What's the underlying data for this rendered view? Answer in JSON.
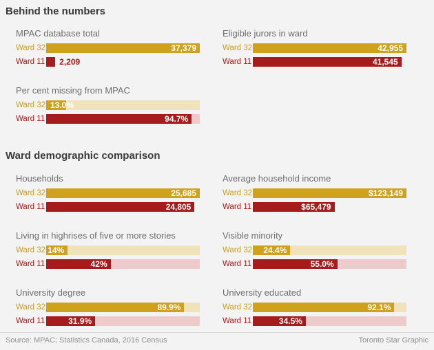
{
  "page": {
    "background": "#F3F3F3",
    "footer": {
      "source": "Source: MPAC; Statistics Canada, 2016 Census",
      "credit": "Toronto Star Graphic"
    }
  },
  "colors": {
    "ward32_bar": "#CFA11D",
    "ward11_bar": "#A61B1B",
    "ward32_track": "#F0E2BB",
    "ward11_track": "#EFCACA",
    "heading_text": "#3A3A3A",
    "chart_title_text": "#6E6E6E",
    "value_text": "#FFFFFF",
    "footer_text": "#8F8F8F",
    "background": "#F3F3F3"
  },
  "chart_data": {
    "type": "bar",
    "orientation": "horizontal",
    "categories": [
      "Ward 32",
      "Ward 11"
    ],
    "legend": "none",
    "grid": "off",
    "sections": [
      {
        "heading": "Behind the numbers",
        "charts": [
          {
            "title": "MPAC database total",
            "col": 1,
            "row": 1,
            "percent_scale": false,
            "rows": [
              {
                "label": "Ward 32",
                "series": "ward32",
                "value": 37379,
                "display": "37,379",
                "value_pos": "inside"
              },
              {
                "label": "Ward 11",
                "series": "ward11",
                "value": 2209,
                "display": "2,209",
                "value_pos": "outside"
              }
            ]
          },
          {
            "title": "Eligible jurors in ward",
            "col": 2,
            "row": 1,
            "percent_scale": false,
            "rows": [
              {
                "label": "Ward 32",
                "series": "ward32",
                "value": 42955,
                "display": "42,955",
                "value_pos": "inside"
              },
              {
                "label": "Ward 11",
                "series": "ward11",
                "value": 41545,
                "display": "41,545",
                "value_pos": "inside"
              }
            ]
          },
          {
            "title": "Per cent missing from MPAC",
            "col": 1,
            "row": 2,
            "percent_scale": true,
            "rows": [
              {
                "label": "Ward 32",
                "series": "ward32",
                "value": 13.0,
                "display": "13.0%",
                "value_pos": "overflow"
              },
              {
                "label": "Ward 11",
                "series": "ward11",
                "value": 94.7,
                "display": "94.7%",
                "value_pos": "inside"
              }
            ]
          }
        ]
      },
      {
        "heading": "Ward demographic comparison",
        "charts": [
          {
            "title": "Households",
            "col": 1,
            "row": 1,
            "percent_scale": false,
            "rows": [
              {
                "label": "Ward 32",
                "series": "ward32",
                "value": 25685,
                "display": "25,685",
                "value_pos": "inside"
              },
              {
                "label": "Ward 11",
                "series": "ward11",
                "value": 24805,
                "display": "24,805",
                "value_pos": "inside"
              }
            ]
          },
          {
            "title": "Average household income",
            "col": 2,
            "row": 1,
            "percent_scale": false,
            "rows": [
              {
                "label": "Ward 32",
                "series": "ward32",
                "value": 123149,
                "display": "$123,149",
                "value_pos": "inside"
              },
              {
                "label": "Ward 11",
                "series": "ward11",
                "value": 65479,
                "display": "$65,479",
                "value_pos": "inside"
              }
            ]
          },
          {
            "title": "Living in highrises of five or more stories",
            "col": 1,
            "row": 2,
            "percent_scale": true,
            "rows": [
              {
                "label": "Ward 32",
                "series": "ward32",
                "value": 14,
                "display": "14%",
                "value_pos": "inside"
              },
              {
                "label": "Ward 11",
                "series": "ward11",
                "value": 42,
                "display": "42%",
                "value_pos": "inside"
              }
            ]
          },
          {
            "title": "Visible minority",
            "col": 2,
            "row": 2,
            "percent_scale": true,
            "rows": [
              {
                "label": "Ward 32",
                "series": "ward32",
                "value": 24.4,
                "display": "24.4%",
                "value_pos": "inside"
              },
              {
                "label": "Ward 11",
                "series": "ward11",
                "value": 55.0,
                "display": "55.0%",
                "value_pos": "inside"
              }
            ]
          },
          {
            "title": "University degree",
            "col": 1,
            "row": 3,
            "percent_scale": true,
            "rows": [
              {
                "label": "Ward 32",
                "series": "ward32",
                "value": 89.9,
                "display": "89.9%",
                "value_pos": "inside"
              },
              {
                "label": "Ward 11",
                "series": "ward11",
                "value": 31.9,
                "display": "31.9%",
                "value_pos": "inside"
              }
            ]
          },
          {
            "title": "University educated",
            "col": 2,
            "row": 3,
            "percent_scale": true,
            "rows": [
              {
                "label": "Ward 32",
                "series": "ward32",
                "value": 92.1,
                "display": "92.1%",
                "value_pos": "inside"
              },
              {
                "label": "Ward 11",
                "series": "ward11",
                "value": 34.5,
                "display": "34.5%",
                "value_pos": "inside"
              }
            ]
          }
        ]
      }
    ]
  }
}
